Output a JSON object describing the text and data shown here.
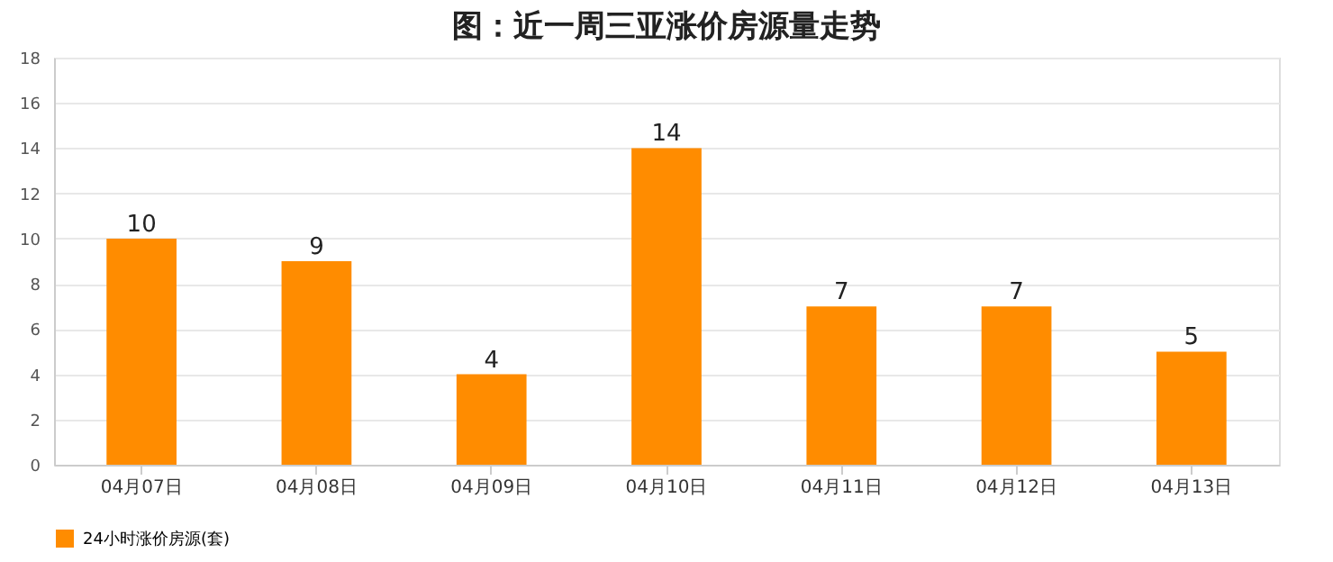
{
  "chart_data": {
    "type": "bar",
    "title": "图：近一周三亚涨价房源量走势",
    "categories": [
      "04月07日",
      "04月08日",
      "04月09日",
      "04月10日",
      "04月11日",
      "04月12日",
      "04月13日"
    ],
    "series": [
      {
        "name": "24小时涨价房源(套)",
        "color": "#ff8c00",
        "values": [
          10,
          9,
          4,
          14,
          7,
          7,
          5
        ]
      }
    ],
    "ylim": [
      0,
      18
    ],
    "yticks": [
      0,
      2,
      4,
      6,
      8,
      10,
      12,
      14,
      16,
      18
    ],
    "grid": "y",
    "legend": "bottom",
    "data_labels": true
  }
}
